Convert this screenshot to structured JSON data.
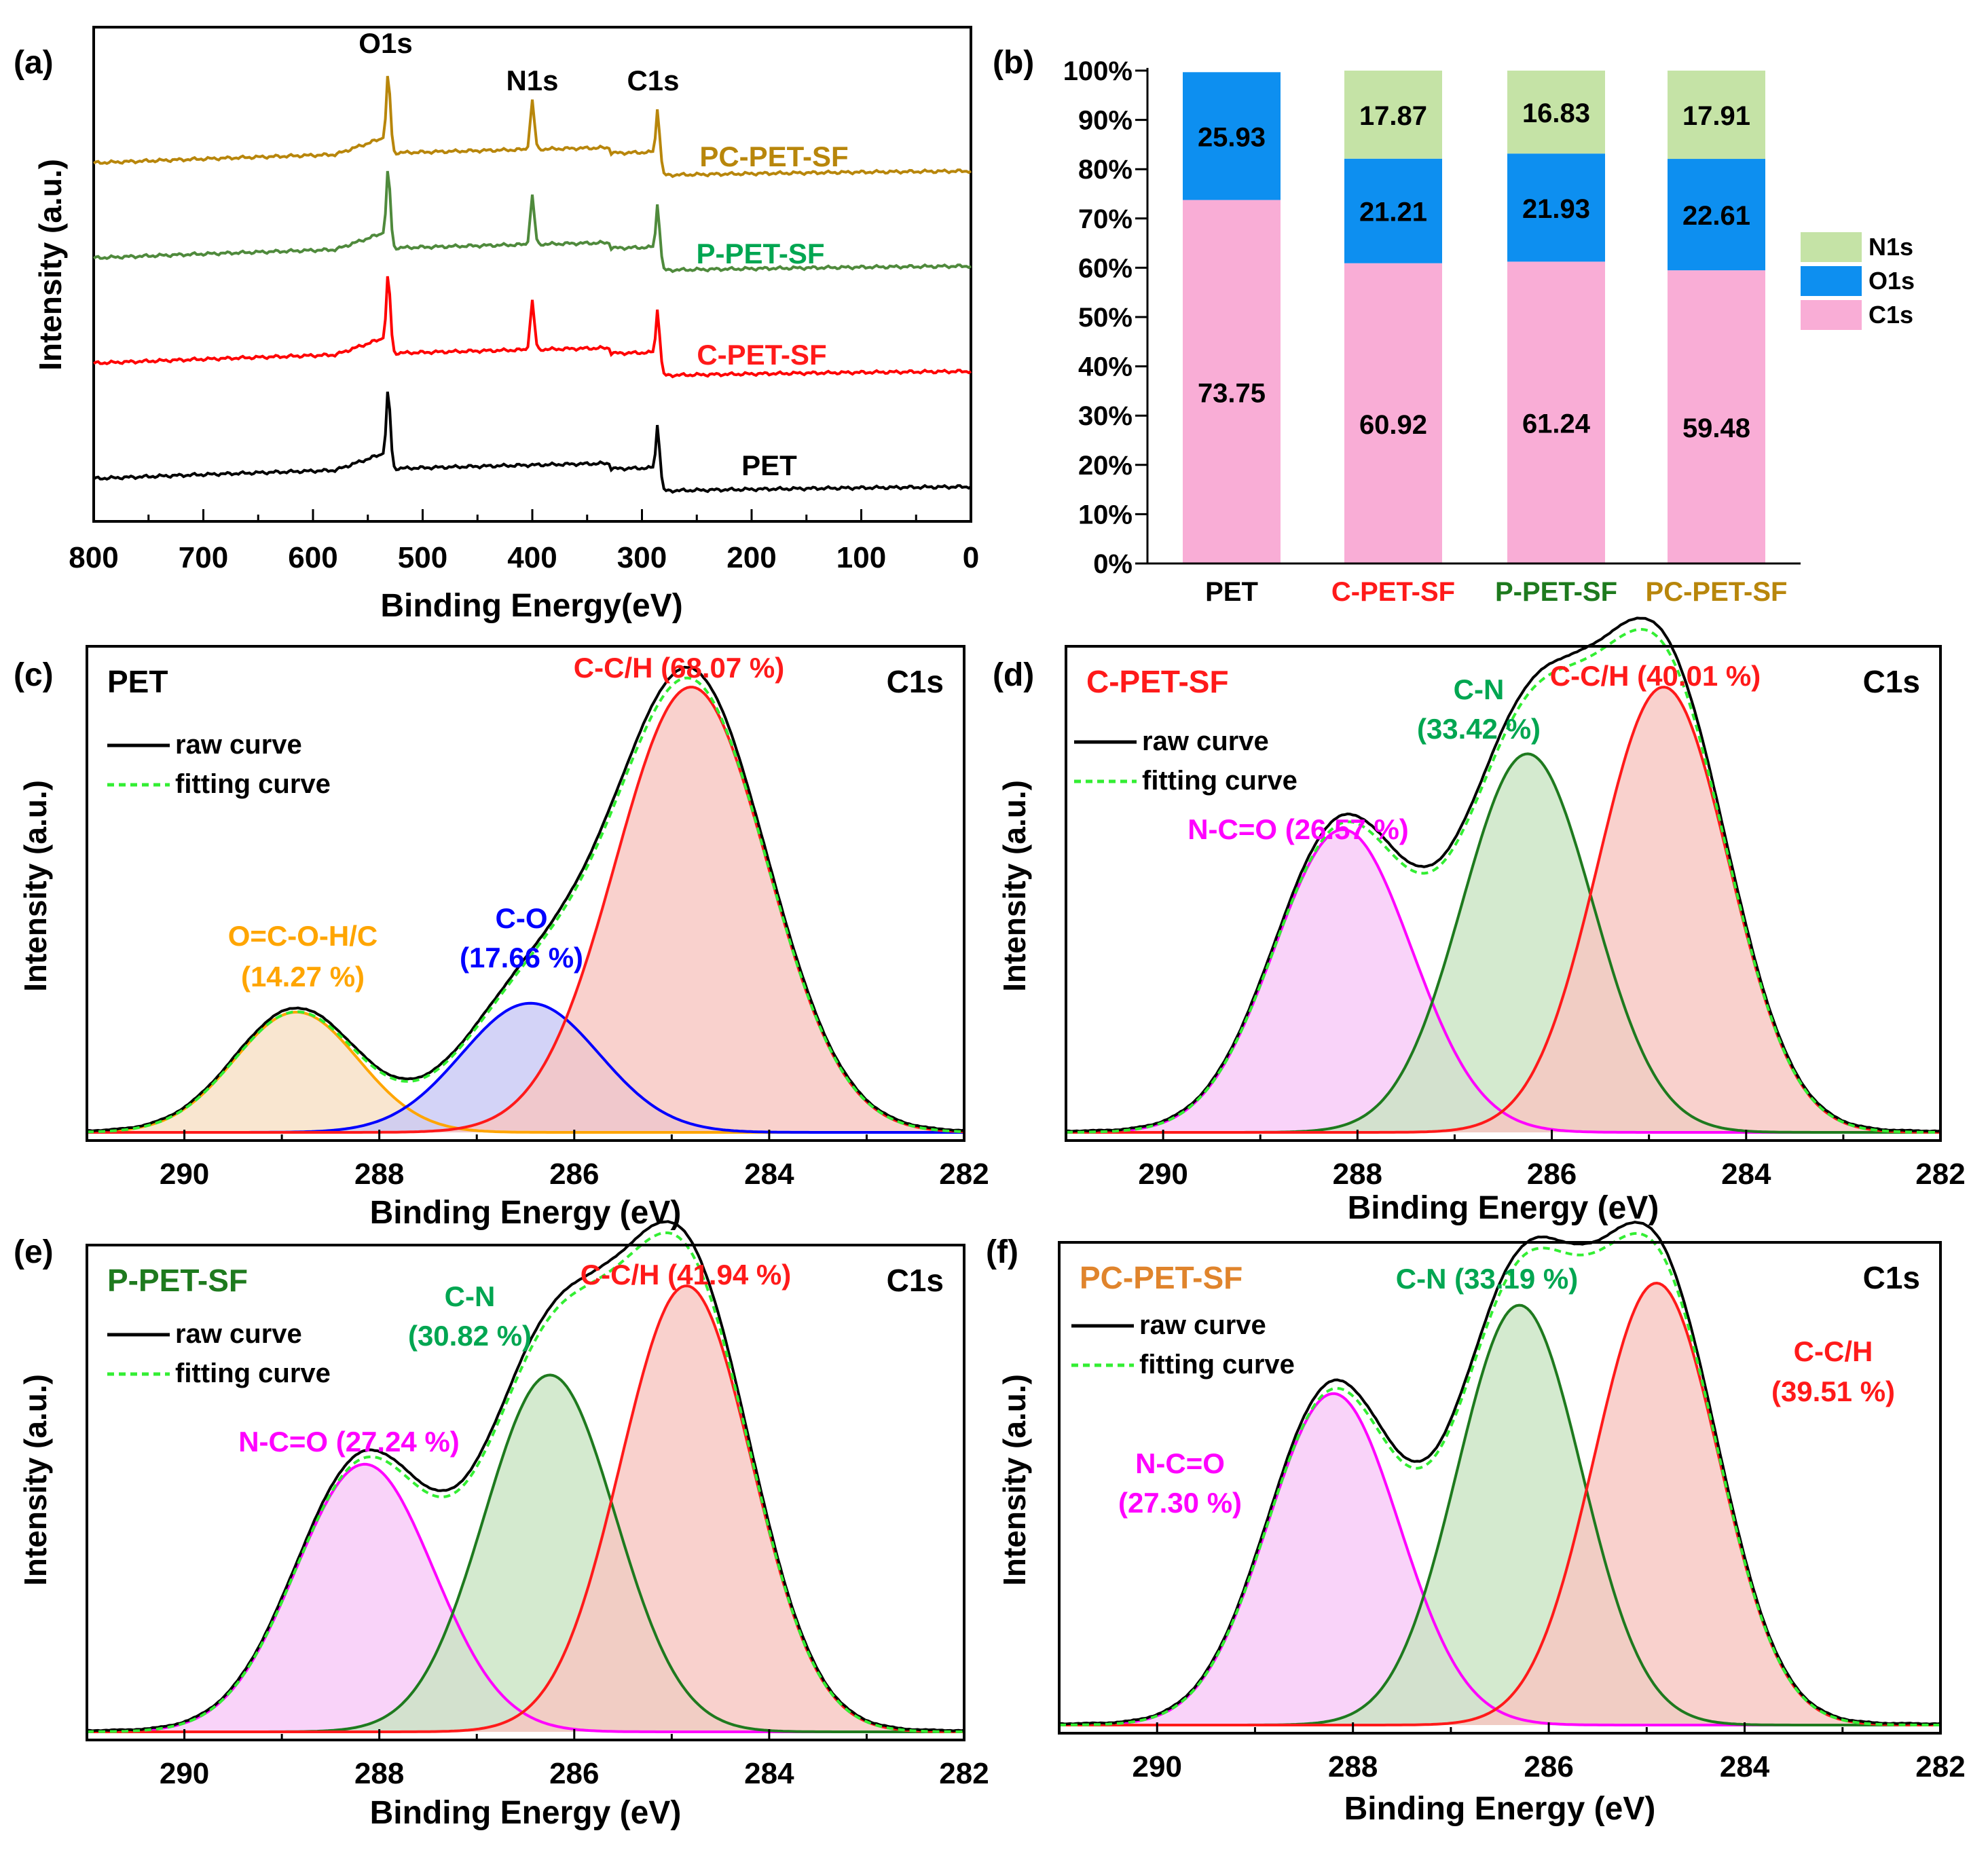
{
  "colors": {
    "black": "#000000",
    "red": "#ff1a1a",
    "green_text": "#00a651",
    "dark_green": "#1e7a1e",
    "olive": "#b8860b",
    "pet_olive": "#a8882a",
    "p_green": "#4f8a3c",
    "fit_green": "#33ee33",
    "magenta": "#ff00ff",
    "blue": "#0000ff",
    "orange": "#ffa500",
    "c1s_pink": "#f9add6",
    "o1s_blue": "#0d8ff0",
    "n1s_green": "#c5e3a6",
    "peak_red_fill": "#f8c5c0",
    "peak_green_fill": "#c9e5c3",
    "peak_pink_fill": "#f8c8f8",
    "peak_orange_fill": "#f8e0c4",
    "peak_blue_fill": "#c8c8f5"
  },
  "chart_data": [
    {
      "panel": "(a)",
      "type": "line",
      "xlabel": "Binding Energy(eV)",
      "ylabel": "Intensity (a.u.)",
      "xlim": [
        800,
        0
      ],
      "xticks": [
        "800",
        "700",
        "600",
        "500",
        "400",
        "300",
        "200",
        "100",
        "0"
      ],
      "peak_labels": [
        {
          "text": "O1s",
          "x": 531
        },
        {
          "text": "N1s",
          "x": 400
        },
        {
          "text": "C1s",
          "x": 285
        }
      ],
      "series": [
        {
          "name": "PC-PET-SF",
          "color": "#b8860b",
          "peaks": [
            {
              "x": 531,
              "h": 0.42
            },
            {
              "x": 400,
              "h": 0.3
            },
            {
              "x": 285,
              "h": 0.31
            }
          ]
        },
        {
          "name": "P-PET-SF",
          "color": "#4f8a3c",
          "peaks": [
            {
              "x": 531,
              "h": 0.42
            },
            {
              "x": 400,
              "h": 0.3
            },
            {
              "x": 285,
              "h": 0.31
            }
          ]
        },
        {
          "name": "C-PET-SF",
          "color": "#ff0000",
          "peaks": [
            {
              "x": 531,
              "h": 0.42
            },
            {
              "x": 400,
              "h": 0.3
            },
            {
              "x": 285,
              "h": 0.31
            }
          ]
        },
        {
          "name": "PET",
          "color": "#000000",
          "peaks": [
            {
              "x": 531,
              "h": 0.42
            },
            {
              "x": 285,
              "h": 0.31
            }
          ]
        }
      ]
    },
    {
      "panel": "(b)",
      "type": "bar",
      "stacked": true,
      "categories": [
        "PET",
        "C-PET-SF",
        "P-PET-SF",
        "PC-PET-SF"
      ],
      "category_colors": [
        "#000000",
        "#ff1a1a",
        "#1e7a1e",
        "#b8860b"
      ],
      "yticks": [
        "0%",
        "10%",
        "20%",
        "30%",
        "40%",
        "50%",
        "60%",
        "70%",
        "80%",
        "90%",
        "100%"
      ],
      "ylim": [
        0,
        100
      ],
      "series": [
        {
          "name": "C1s",
          "color": "#f9add6",
          "values": [
            73.75,
            60.92,
            61.24,
            59.48
          ],
          "labels": [
            "73.75",
            "60.92",
            "61.24",
            "59.48"
          ]
        },
        {
          "name": "O1s",
          "color": "#0d8ff0",
          "values": [
            25.93,
            21.21,
            21.93,
            22.61
          ],
          "labels": [
            "25.93",
            "21.21",
            "21.93",
            "22.61"
          ]
        },
        {
          "name": "N1s",
          "color": "#c5e3a6",
          "values": [
            0,
            17.87,
            16.83,
            17.91
          ],
          "labels": [
            "",
            "17.87",
            "16.83",
            "17.91"
          ]
        }
      ],
      "legend": [
        "N1s",
        "O1s",
        "C1s"
      ]
    },
    {
      "panel": "(c)",
      "type": "area",
      "title": "PET",
      "title_color": "#000000",
      "corner_label": "C1s",
      "xlabel": "Binding Energy (eV)",
      "ylabel": "Intensity (a.u.)",
      "xlim": [
        291,
        282
      ],
      "xticks": [
        "290",
        "288",
        "286",
        "284",
        "282"
      ],
      "legend": [
        "raw curve",
        "fitting curve"
      ],
      "peaks": [
        {
          "name": "O=C-O-H/C",
          "pct": "(14.27 %)",
          "center": 288.85,
          "height": 0.27,
          "width": 0.9,
          "color": "#ffa500",
          "fill": "#f8e0c4"
        },
        {
          "name": "C-O",
          "pct": "(17.66 %)",
          "center": 286.45,
          "height": 0.29,
          "width": 1.0,
          "color": "#0000ff",
          "fill": "#c8c8f5"
        },
        {
          "name": "C-C/H",
          "pct": "(68.07 %)",
          "center": 284.8,
          "height": 1.0,
          "width": 1.1,
          "color": "#ff1a1a",
          "fill": "#f8c5c0"
        }
      ]
    },
    {
      "panel": "(d)",
      "type": "area",
      "title": "C-PET-SF",
      "title_color": "#ff1a1a",
      "corner_label": "C1s",
      "xlabel": "Binding Energy (eV)",
      "ylabel": "Intensity (a.u.)",
      "xlim": [
        291,
        282
      ],
      "xticks": [
        "290",
        "288",
        "286",
        "284",
        "282"
      ],
      "legend": [
        "raw curve",
        "fitting curve"
      ],
      "peaks": [
        {
          "name": "N-C=O",
          "pct": "(26.57 %)",
          "center": 288.15,
          "height": 0.68,
          "width": 1.0,
          "color": "#ff00ff",
          "fill": "#f8c8f8"
        },
        {
          "name": "C-N",
          "pct": "(33.42 %)",
          "center": 286.25,
          "height": 0.85,
          "width": 0.95,
          "color": "#1e7a1e",
          "fill": "#c9e5c3"
        },
        {
          "name": "C-C/H",
          "pct": "(40.01 %)",
          "center": 284.85,
          "height": 1.0,
          "width": 0.95,
          "color": "#ff1a1a",
          "fill": "#f8c5c0"
        }
      ]
    },
    {
      "panel": "(e)",
      "type": "area",
      "title": "P-PET-SF",
      "title_color": "#1e7a1e",
      "corner_label": "C1s",
      "xlabel": "Binding Energy (eV)",
      "ylabel": "Intensity (a.u.)",
      "xlim": [
        291,
        282
      ],
      "xticks": [
        "290",
        "288",
        "286",
        "284",
        "282"
      ],
      "legend": [
        "raw curve",
        "fitting curve"
      ],
      "peaks": [
        {
          "name": "N-C=O",
          "pct": "(27.24 %)",
          "center": 288.15,
          "height": 0.6,
          "width": 1.0,
          "color": "#ff00ff",
          "fill": "#f8c8f8"
        },
        {
          "name": "C-N",
          "pct": "(30.82 %)",
          "center": 286.25,
          "height": 0.8,
          "width": 0.95,
          "color": "#1e7a1e",
          "fill": "#c9e5c3"
        },
        {
          "name": "C-C/H",
          "pct": "(41.94 %)",
          "center": 284.85,
          "height": 1.0,
          "width": 0.95,
          "color": "#ff1a1a",
          "fill": "#f8c5c0"
        }
      ]
    },
    {
      "panel": "(f)",
      "type": "area",
      "title": "PC-PET-SF",
      "title_color": "#e0842c",
      "corner_label": "C1s",
      "xlabel": "Binding Energy (eV)",
      "ylabel": "Intensity (a.u.)",
      "xlim": [
        291,
        282
      ],
      "xticks": [
        "290",
        "288",
        "286",
        "284",
        "282"
      ],
      "legend": [
        "raw curve",
        "fitting curve"
      ],
      "peaks": [
        {
          "name": "N-C=O",
          "pct": "(27.30 %)",
          "center": 288.2,
          "height": 0.75,
          "width": 0.95,
          "color": "#ff00ff",
          "fill": "#f8c8f8"
        },
        {
          "name": "C-N",
          "pct": "(33.19 %)",
          "center": 286.3,
          "height": 0.95,
          "width": 0.9,
          "color": "#1e7a1e",
          "fill": "#c9e5c3"
        },
        {
          "name": "C-C/H",
          "pct": "(39.51 %)",
          "center": 284.9,
          "height": 1.0,
          "width": 0.9,
          "color": "#ff1a1a",
          "fill": "#f8c5c0"
        }
      ]
    }
  ]
}
